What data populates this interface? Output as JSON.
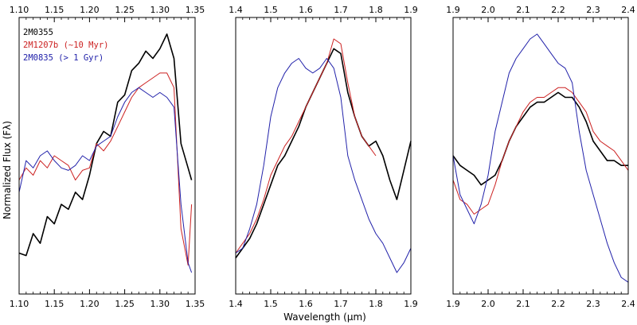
{
  "chart_data": {
    "type": "line",
    "xlabel": "Wavelength (μm)",
    "ylabel": "Normalized Flux (Fλ)",
    "legend": {
      "placement": "top-left",
      "entries": [
        {
          "label": "2M0355",
          "color": "#000000"
        },
        {
          "label": "2M1207b (~10 Myr)",
          "color": "#cc2222"
        },
        {
          "label": "2M0835 (> 1 Gyr)",
          "color": "#2222aa"
        }
      ]
    },
    "panels": [
      {
        "xlim": [
          1.1,
          1.35
        ],
        "ylim": [
          0,
          1
        ],
        "xticks": [
          "1.10",
          "1.15",
          "1.20",
          "1.25",
          "1.30",
          "1.35"
        ],
        "series": [
          {
            "name": "2M0355",
            "color": "#000000",
            "x": [
              1.1,
              1.11,
              1.12,
              1.13,
              1.14,
              1.15,
              1.16,
              1.17,
              1.18,
              1.19,
              1.2,
              1.21,
              1.22,
              1.23,
              1.24,
              1.25,
              1.26,
              1.27,
              1.28,
              1.29,
              1.3,
              1.31,
              1.32,
              1.33,
              1.34,
              1.345
            ],
            "y": [
              0.1,
              0.09,
              0.18,
              0.14,
              0.25,
              0.22,
              0.3,
              0.28,
              0.35,
              0.32,
              0.42,
              0.55,
              0.6,
              0.58,
              0.72,
              0.75,
              0.85,
              0.88,
              0.93,
              0.9,
              0.94,
              1.0,
              0.9,
              0.55,
              0.45,
              0.4
            ]
          },
          {
            "name": "2M1207b (~10 Myr)",
            "color": "#cc2222",
            "x": [
              1.1,
              1.11,
              1.12,
              1.13,
              1.14,
              1.15,
              1.16,
              1.17,
              1.18,
              1.19,
              1.2,
              1.21,
              1.22,
              1.23,
              1.24,
              1.25,
              1.26,
              1.27,
              1.28,
              1.29,
              1.3,
              1.31,
              1.32,
              1.33,
              1.34,
              1.345
            ],
            "y": [
              0.4,
              0.45,
              0.42,
              0.48,
              0.45,
              0.5,
              0.48,
              0.46,
              0.4,
              0.44,
              0.45,
              0.55,
              0.52,
              0.56,
              0.62,
              0.68,
              0.74,
              0.78,
              0.8,
              0.82,
              0.84,
              0.84,
              0.78,
              0.2,
              0.05,
              0.3
            ]
          },
          {
            "name": "2M0835 (> 1 Gyr)",
            "color": "#2222aa",
            "x": [
              1.1,
              1.11,
              1.12,
              1.13,
              1.14,
              1.15,
              1.16,
              1.17,
              1.18,
              1.19,
              1.2,
              1.21,
              1.22,
              1.23,
              1.24,
              1.25,
              1.26,
              1.27,
              1.28,
              1.29,
              1.3,
              1.31,
              1.32,
              1.33,
              1.34,
              1.345
            ],
            "y": [
              0.35,
              0.48,
              0.45,
              0.5,
              0.52,
              0.48,
              0.45,
              0.44,
              0.46,
              0.5,
              0.48,
              0.54,
              0.56,
              0.58,
              0.66,
              0.72,
              0.76,
              0.78,
              0.76,
              0.74,
              0.76,
              0.74,
              0.7,
              0.3,
              0.06,
              0.02
            ]
          }
        ]
      },
      {
        "xlim": [
          1.4,
          1.9
        ],
        "ylim": [
          0,
          1
        ],
        "xticks": [
          "1.4",
          "1.5",
          "1.6",
          "1.7",
          "1.8",
          "1.9"
        ],
        "series": [
          {
            "name": "2M0355",
            "color": "#000000",
            "x": [
              1.4,
              1.42,
              1.44,
              1.46,
              1.48,
              1.5,
              1.52,
              1.54,
              1.56,
              1.58,
              1.6,
              1.62,
              1.64,
              1.66,
              1.68,
              1.7,
              1.72,
              1.74,
              1.76,
              1.78,
              1.8,
              1.82,
              1.84,
              1.86,
              1.88,
              1.9
            ],
            "y": [
              0.08,
              0.12,
              0.16,
              0.22,
              0.3,
              0.38,
              0.46,
              0.5,
              0.56,
              0.62,
              0.7,
              0.76,
              0.82,
              0.88,
              0.94,
              0.92,
              0.76,
              0.66,
              0.58,
              0.54,
              0.56,
              0.5,
              0.4,
              0.32,
              0.44,
              0.56
            ]
          },
          {
            "name": "2M1207b (~10 Myr)",
            "color": "#cc2222",
            "x": [
              1.4,
              1.42,
              1.44,
              1.46,
              1.48,
              1.5,
              1.52,
              1.54,
              1.56,
              1.58,
              1.6,
              1.62,
              1.64,
              1.66,
              1.68,
              1.7,
              1.72,
              1.74,
              1.76,
              1.78,
              1.8
            ],
            "y": [
              0.1,
              0.14,
              0.18,
              0.24,
              0.32,
              0.42,
              0.48,
              0.54,
              0.58,
              0.64,
              0.7,
              0.76,
              0.82,
              0.88,
              0.98,
              0.96,
              0.8,
              0.66,
              0.58,
              0.54,
              0.5
            ]
          },
          {
            "name": "2M0835 (> 1 Gyr)",
            "color": "#2222aa",
            "x": [
              1.4,
              1.42,
              1.44,
              1.46,
              1.48,
              1.5,
              1.52,
              1.54,
              1.56,
              1.58,
              1.6,
              1.62,
              1.64,
              1.66,
              1.68,
              1.7,
              1.72,
              1.74,
              1.76,
              1.78,
              1.8,
              1.82,
              1.84,
              1.86,
              1.88,
              1.9
            ],
            "y": [
              0.1,
              0.12,
              0.2,
              0.3,
              0.46,
              0.66,
              0.78,
              0.84,
              0.88,
              0.9,
              0.86,
              0.84,
              0.86,
              0.9,
              0.86,
              0.74,
              0.5,
              0.4,
              0.32,
              0.24,
              0.18,
              0.14,
              0.08,
              0.02,
              0.06,
              0.12
            ]
          }
        ]
      },
      {
        "xlim": [
          1.9,
          2.4
        ],
        "ylim": [
          0,
          1
        ],
        "xticks": [
          "1.9",
          "2.0",
          "2.1",
          "2.2",
          "2.3",
          "2.4"
        ],
        "series": [
          {
            "name": "2M0355",
            "color": "#000000",
            "x": [
              1.9,
              1.92,
              1.94,
              1.96,
              1.98,
              2.0,
              2.02,
              2.04,
              2.06,
              2.08,
              2.1,
              2.12,
              2.14,
              2.16,
              2.18,
              2.2,
              2.22,
              2.24,
              2.26,
              2.28,
              2.3,
              2.32,
              2.34,
              2.36,
              2.38,
              2.4
            ],
            "y": [
              0.5,
              0.46,
              0.44,
              0.42,
              0.38,
              0.4,
              0.42,
              0.48,
              0.56,
              0.62,
              0.66,
              0.7,
              0.72,
              0.72,
              0.74,
              0.76,
              0.74,
              0.74,
              0.7,
              0.64,
              0.56,
              0.52,
              0.48,
              0.48,
              0.46,
              0.46
            ]
          },
          {
            "name": "2M1207b (~10 Myr)",
            "color": "#cc2222",
            "x": [
              1.9,
              1.92,
              1.94,
              1.96,
              1.98,
              2.0,
              2.02,
              2.04,
              2.06,
              2.08,
              2.1,
              2.12,
              2.14,
              2.16,
              2.18,
              2.2,
              2.22,
              2.24,
              2.26,
              2.28,
              2.3,
              2.32,
              2.34,
              2.36,
              2.38,
              2.4
            ],
            "y": [
              0.4,
              0.32,
              0.3,
              0.26,
              0.28,
              0.3,
              0.38,
              0.48,
              0.56,
              0.62,
              0.68,
              0.72,
              0.74,
              0.74,
              0.76,
              0.78,
              0.78,
              0.76,
              0.72,
              0.68,
              0.6,
              0.56,
              0.54,
              0.52,
              0.48,
              0.44
            ]
          },
          {
            "name": "2M0835 (> 1 Gyr)",
            "color": "#2222aa",
            "x": [
              1.9,
              1.92,
              1.94,
              1.96,
              1.98,
              2.0,
              2.02,
              2.04,
              2.06,
              2.08,
              2.1,
              2.12,
              2.14,
              2.16,
              2.18,
              2.2,
              2.22,
              2.24,
              2.26,
              2.28,
              2.3,
              2.32,
              2.34,
              2.36,
              2.38,
              2.4
            ],
            "y": [
              0.5,
              0.34,
              0.28,
              0.22,
              0.3,
              0.42,
              0.6,
              0.72,
              0.84,
              0.9,
              0.94,
              0.98,
              1.0,
              0.96,
              0.92,
              0.88,
              0.86,
              0.8,
              0.6,
              0.44,
              0.34,
              0.24,
              0.14,
              0.06,
              0.0,
              -0.02
            ]
          }
        ]
      }
    ]
  }
}
